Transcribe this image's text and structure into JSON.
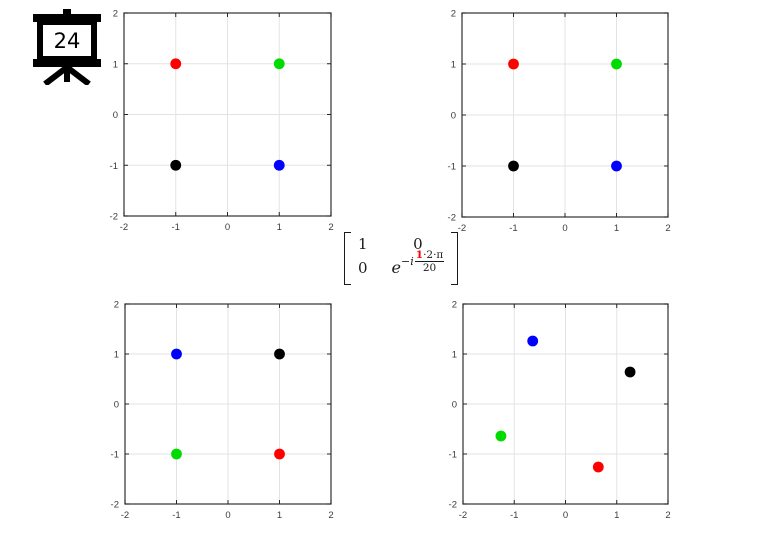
{
  "slide_icon": {
    "number": "24"
  },
  "colors": {
    "red": "#ff0000",
    "green": "#00dc00",
    "blue": "#0000ff",
    "black": "#000000",
    "grid": "#e3e3e3",
    "box": "#404040",
    "tick": "#262626",
    "tick_label": "#3c3c3c",
    "highlight_red": "#ff0000"
  },
  "matrix": {
    "row1_col1": "1",
    "row1_col2": "0",
    "row2_col1": "0",
    "exponent": {
      "base": "e",
      "prefix": "−i",
      "numerator_red": "1",
      "numerator_rest": "·2·π",
      "denominator": "20"
    }
  },
  "chart_data": [
    {
      "id": "top-left",
      "type": "scatter",
      "title": "",
      "xlabel": "",
      "ylabel": "",
      "xlim": [
        -2,
        2
      ],
      "ylim": [
        -2,
        2
      ],
      "xticks": [
        -2,
        -1,
        0,
        1,
        2
      ],
      "yticks": [
        -2,
        -1,
        0,
        1,
        2
      ],
      "grid": true,
      "points": [
        {
          "x": -1,
          "y": 1,
          "color": "red"
        },
        {
          "x": 1,
          "y": 1,
          "color": "green"
        },
        {
          "x": -1,
          "y": -1,
          "color": "black"
        },
        {
          "x": 1,
          "y": -1,
          "color": "blue"
        }
      ]
    },
    {
      "id": "top-right",
      "type": "scatter",
      "title": "",
      "xlabel": "",
      "ylabel": "",
      "xlim": [
        -2,
        2
      ],
      "ylim": [
        -2,
        2
      ],
      "xticks": [
        -2,
        -1,
        0,
        1,
        2
      ],
      "yticks": [
        -2,
        -1,
        0,
        1,
        2
      ],
      "grid": true,
      "points": [
        {
          "x": -1,
          "y": 1,
          "color": "red"
        },
        {
          "x": 1,
          "y": 1,
          "color": "green"
        },
        {
          "x": -1,
          "y": -1,
          "color": "black"
        },
        {
          "x": 1,
          "y": -1,
          "color": "blue"
        }
      ]
    },
    {
      "id": "bottom-left",
      "type": "scatter",
      "title": "",
      "xlabel": "",
      "ylabel": "",
      "xlim": [
        -2,
        2
      ],
      "ylim": [
        -2,
        2
      ],
      "xticks": [
        -2,
        -1,
        0,
        1,
        2
      ],
      "yticks": [
        -2,
        -1,
        0,
        1,
        2
      ],
      "grid": true,
      "points": [
        {
          "x": -1,
          "y": 1,
          "color": "blue"
        },
        {
          "x": 1,
          "y": 1,
          "color": "black"
        },
        {
          "x": -1,
          "y": -1,
          "color": "green"
        },
        {
          "x": 1,
          "y": -1,
          "color": "red"
        }
      ]
    },
    {
      "id": "bottom-right",
      "type": "scatter",
      "title": "",
      "xlabel": "",
      "ylabel": "",
      "xlim": [
        -2,
        2
      ],
      "ylim": [
        -2,
        2
      ],
      "xticks": [
        -2,
        -1,
        0,
        1,
        2
      ],
      "yticks": [
        -2,
        -1,
        0,
        1,
        2
      ],
      "grid": true,
      "points": [
        {
          "x": -0.64,
          "y": 1.26,
          "color": "blue"
        },
        {
          "x": 1.26,
          "y": 0.64,
          "color": "black"
        },
        {
          "x": -1.26,
          "y": -0.64,
          "color": "green"
        },
        {
          "x": 0.64,
          "y": -1.26,
          "color": "red"
        }
      ]
    }
  ]
}
